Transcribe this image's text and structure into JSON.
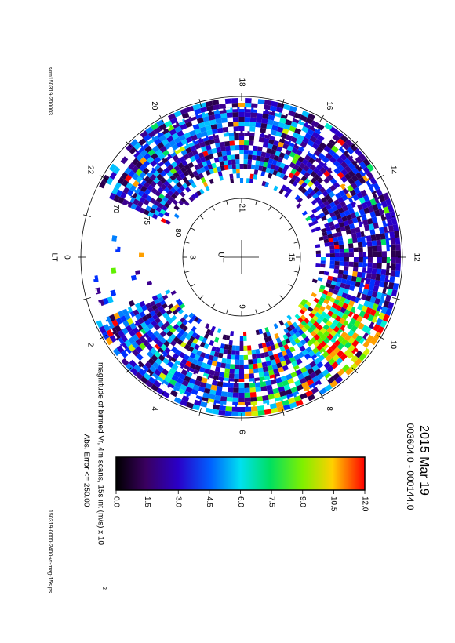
{
  "header": {
    "title": "2015 Mar 19",
    "time_range": "003604.0 - 000144.0",
    "plot_id": "scm150319-200003",
    "file_name": "150319-0000-2400-vr-mag-15s.ps"
  },
  "polar_plot": {
    "lt_axis_label": "LT",
    "lt_labels": [
      "0",
      "2",
      "4",
      "6",
      "8",
      "10",
      "12",
      "14",
      "16",
      "18",
      "20",
      "22"
    ],
    "latitude_labels": [
      "70",
      "75",
      "80"
    ],
    "center_label": "UT",
    "ut_labels": [
      "21",
      "15",
      "9",
      "3"
    ]
  },
  "colorbar": {
    "ticks": [
      "0.0",
      "1.5",
      "3.0",
      "4.5",
      "6.0",
      "7.5",
      "9.0",
      "10.5",
      "12.0"
    ],
    "caption_main": "magnitude of binned Vr, 4m scans, 15s int (m/s) x 10",
    "caption_exponent": "2",
    "error_note": "Abs. Error <= 250.00"
  }
}
